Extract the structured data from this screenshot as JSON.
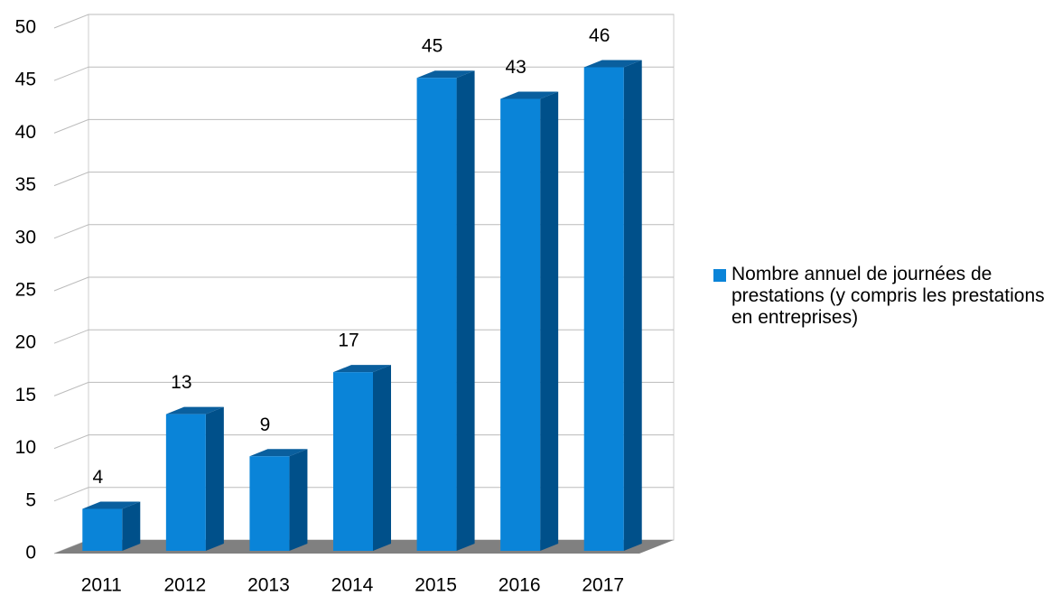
{
  "chart_data": {
    "type": "bar",
    "categories": [
      "2011",
      "2012",
      "2013",
      "2014",
      "2015",
      "2016",
      "2017"
    ],
    "series": [
      {
        "name": "Nombre annuel de journées de prestations (y compris les prestations en entreprises)",
        "color": "#0a84d8",
        "values": [
          4,
          13,
          9,
          17,
          45,
          43,
          46
        ]
      }
    ],
    "ylim": [
      0,
      50
    ],
    "yticks": [
      0,
      5,
      10,
      15,
      20,
      25,
      30,
      35,
      40,
      45,
      50
    ],
    "grid": true,
    "legend": "right"
  }
}
